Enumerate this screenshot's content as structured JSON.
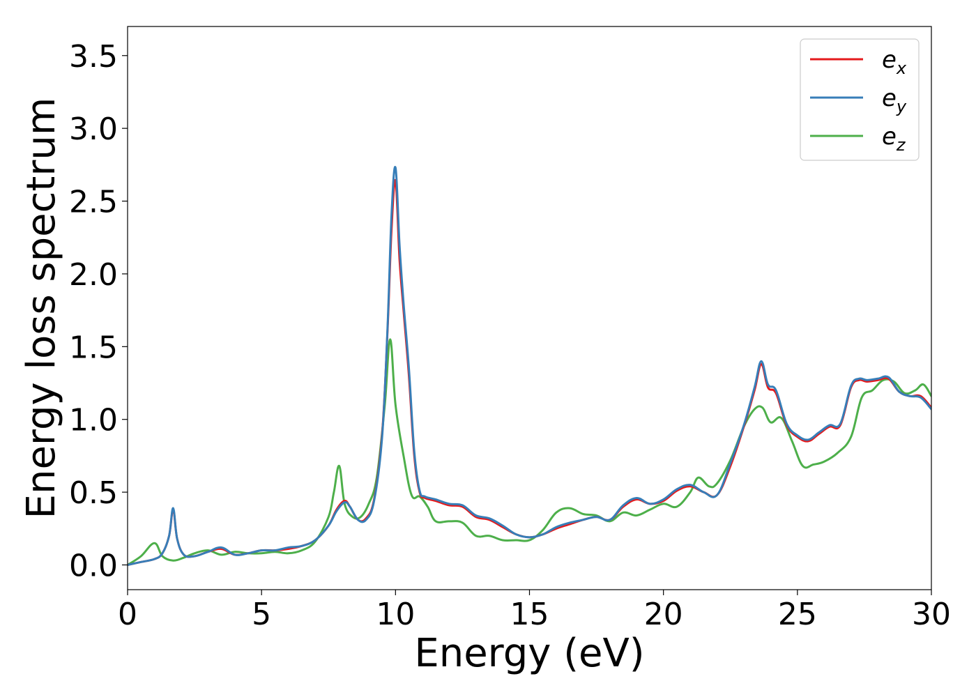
{
  "chart_data": {
    "type": "line",
    "xlabel": "Energy (eV)",
    "ylabel": "Energy loss spectrum",
    "xlim": [
      0,
      30
    ],
    "ylim": [
      -0.17,
      3.7
    ],
    "xticks": [
      0,
      5,
      10,
      15,
      20,
      25,
      30
    ],
    "yticks": [
      0.0,
      0.5,
      1.0,
      1.5,
      2.0,
      2.5,
      3.0,
      3.5
    ],
    "xtick_labels": [
      "0",
      "5",
      "10",
      "15",
      "20",
      "25",
      "30"
    ],
    "ytick_labels": [
      "0.0",
      "0.5",
      "1.0",
      "1.5",
      "2.0",
      "2.5",
      "3.0",
      "3.5"
    ],
    "grid": false,
    "legend_position": "top-right",
    "series": [
      {
        "name": "e_x",
        "legend_base": "e",
        "legend_sub": "x",
        "color": "#e41a1c",
        "x": [
          0,
          0.5,
          1.0,
          1.3,
          1.55,
          1.7,
          1.85,
          2.1,
          2.5,
          3.0,
          3.5,
          4.0,
          4.5,
          5.0,
          5.5,
          6.0,
          6.5,
          7.0,
          7.5,
          7.8,
          8.1,
          8.3,
          8.6,
          8.9,
          9.2,
          9.5,
          9.7,
          9.85,
          10.0,
          10.15,
          10.3,
          10.5,
          10.7,
          10.9,
          11.1,
          11.5,
          12.0,
          12.5,
          13.0,
          13.5,
          14.0,
          14.5,
          15.0,
          15.5,
          16.0,
          16.5,
          17.0,
          17.5,
          18.0,
          18.5,
          19.0,
          19.5,
          20.0,
          20.5,
          21.0,
          21.5,
          22.0,
          22.5,
          23.0,
          23.4,
          23.65,
          23.9,
          24.2,
          24.6,
          25.0,
          25.4,
          25.8,
          26.2,
          26.6,
          27.0,
          27.3,
          27.6,
          28.0,
          28.4,
          28.8,
          29.2,
          29.6,
          30.0
        ],
        "y": [
          0.0,
          0.02,
          0.04,
          0.08,
          0.2,
          0.38,
          0.18,
          0.07,
          0.06,
          0.09,
          0.11,
          0.07,
          0.08,
          0.1,
          0.1,
          0.11,
          0.13,
          0.17,
          0.27,
          0.38,
          0.44,
          0.4,
          0.31,
          0.32,
          0.45,
          0.9,
          1.6,
          2.3,
          2.64,
          2.1,
          1.75,
          1.3,
          0.75,
          0.5,
          0.46,
          0.44,
          0.41,
          0.4,
          0.33,
          0.31,
          0.26,
          0.21,
          0.19,
          0.21,
          0.25,
          0.28,
          0.31,
          0.33,
          0.31,
          0.4,
          0.45,
          0.42,
          0.44,
          0.51,
          0.54,
          0.5,
          0.48,
          0.68,
          0.95,
          1.2,
          1.38,
          1.22,
          1.18,
          0.96,
          0.88,
          0.85,
          0.9,
          0.95,
          0.96,
          1.22,
          1.27,
          1.26,
          1.27,
          1.28,
          1.19,
          1.16,
          1.16,
          1.08
        ]
      },
      {
        "name": "e_y",
        "legend_base": "e",
        "legend_sub": "y",
        "color": "#377eb8",
        "x": [
          0,
          0.5,
          1.0,
          1.3,
          1.55,
          1.7,
          1.85,
          2.1,
          2.5,
          3.0,
          3.5,
          4.0,
          4.5,
          5.0,
          5.5,
          6.0,
          6.5,
          7.0,
          7.5,
          7.8,
          8.1,
          8.3,
          8.6,
          8.9,
          9.2,
          9.5,
          9.7,
          9.85,
          10.0,
          10.15,
          10.3,
          10.5,
          10.7,
          10.9,
          11.1,
          11.5,
          12.0,
          12.5,
          13.0,
          13.5,
          14.0,
          14.5,
          15.0,
          15.5,
          16.0,
          16.5,
          17.0,
          17.5,
          18.0,
          18.5,
          19.0,
          19.5,
          20.0,
          20.5,
          21.0,
          21.5,
          22.0,
          22.5,
          23.0,
          23.4,
          23.65,
          23.9,
          24.2,
          24.6,
          25.0,
          25.4,
          25.8,
          26.2,
          26.6,
          27.0,
          27.3,
          27.6,
          28.0,
          28.4,
          28.8,
          29.2,
          29.6,
          30.0
        ],
        "y": [
          0.0,
          0.02,
          0.04,
          0.08,
          0.2,
          0.39,
          0.18,
          0.07,
          0.06,
          0.09,
          0.12,
          0.07,
          0.08,
          0.1,
          0.1,
          0.12,
          0.13,
          0.17,
          0.27,
          0.37,
          0.43,
          0.4,
          0.31,
          0.31,
          0.44,
          0.88,
          1.62,
          2.4,
          2.73,
          2.2,
          1.8,
          1.35,
          0.78,
          0.51,
          0.47,
          0.45,
          0.42,
          0.41,
          0.34,
          0.32,
          0.27,
          0.21,
          0.19,
          0.21,
          0.26,
          0.29,
          0.31,
          0.33,
          0.31,
          0.41,
          0.46,
          0.42,
          0.45,
          0.52,
          0.55,
          0.5,
          0.48,
          0.7,
          0.96,
          1.22,
          1.4,
          1.24,
          1.2,
          0.97,
          0.89,
          0.86,
          0.91,
          0.96,
          0.97,
          1.23,
          1.28,
          1.27,
          1.28,
          1.29,
          1.19,
          1.16,
          1.15,
          1.07
        ]
      },
      {
        "name": "e_z",
        "legend_base": "e",
        "legend_sub": "z",
        "color": "#4daf4a",
        "x": [
          0,
          0.5,
          1.0,
          1.3,
          1.7,
          2.1,
          2.5,
          3.0,
          3.5,
          4.0,
          4.5,
          5.0,
          5.5,
          6.0,
          6.5,
          7.0,
          7.5,
          7.7,
          7.9,
          8.1,
          8.4,
          8.7,
          9.0,
          9.3,
          9.6,
          9.8,
          10.0,
          10.3,
          10.6,
          10.9,
          11.2,
          11.5,
          12.0,
          12.5,
          13.0,
          13.5,
          14.0,
          14.5,
          15.0,
          15.5,
          16.0,
          16.5,
          17.0,
          17.5,
          18.0,
          18.5,
          19.0,
          19.5,
          20.0,
          20.5,
          21.0,
          21.3,
          21.7,
          22.0,
          22.5,
          23.0,
          23.4,
          23.7,
          24.0,
          24.4,
          24.8,
          25.2,
          25.6,
          26.0,
          26.5,
          27.0,
          27.4,
          27.8,
          28.2,
          28.6,
          29.0,
          29.4,
          29.7,
          30.0
        ],
        "y": [
          0.0,
          0.06,
          0.15,
          0.06,
          0.03,
          0.05,
          0.08,
          0.1,
          0.07,
          0.09,
          0.08,
          0.08,
          0.09,
          0.08,
          0.1,
          0.16,
          0.33,
          0.5,
          0.68,
          0.42,
          0.33,
          0.33,
          0.42,
          0.6,
          1.1,
          1.55,
          1.1,
          0.75,
          0.48,
          0.47,
          0.4,
          0.3,
          0.3,
          0.29,
          0.2,
          0.2,
          0.17,
          0.17,
          0.17,
          0.24,
          0.36,
          0.39,
          0.35,
          0.34,
          0.3,
          0.36,
          0.34,
          0.38,
          0.42,
          0.4,
          0.5,
          0.6,
          0.54,
          0.56,
          0.72,
          0.95,
          1.07,
          1.08,
          0.98,
          1.01,
          0.85,
          0.68,
          0.69,
          0.71,
          0.77,
          0.88,
          1.15,
          1.2,
          1.27,
          1.26,
          1.18,
          1.2,
          1.24,
          1.16
        ]
      }
    ]
  }
}
